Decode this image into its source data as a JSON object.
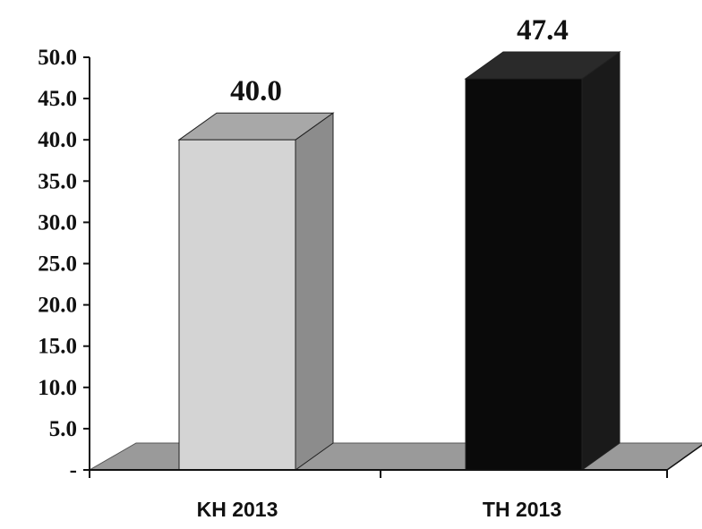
{
  "chart_data": {
    "type": "bar",
    "categories": [
      "KH 2013",
      "TH 2013"
    ],
    "values": [
      40.0,
      47.4
    ],
    "data_labels": [
      "40.0",
      "47.4"
    ],
    "title": "",
    "xlabel": "",
    "ylabel": "",
    "ylim": [
      0,
      50
    ],
    "y_ticks": [
      "-",
      "5.0",
      "10.0",
      "15.0",
      "20.0",
      "25.0",
      "30.0",
      "35.0",
      "40.0",
      "45.0",
      "50.0"
    ],
    "grid": false,
    "legend": "none",
    "style": "3d",
    "bar_colors": [
      "#d4d4d4",
      "#0a0a0a"
    ],
    "bar_side_colors": [
      "#8c8c8c",
      "#1a1a1a"
    ],
    "bar_top_colors": [
      "#a8a8a8",
      "#2a2a2a"
    ],
    "floor_color": "#9a9a9a"
  }
}
